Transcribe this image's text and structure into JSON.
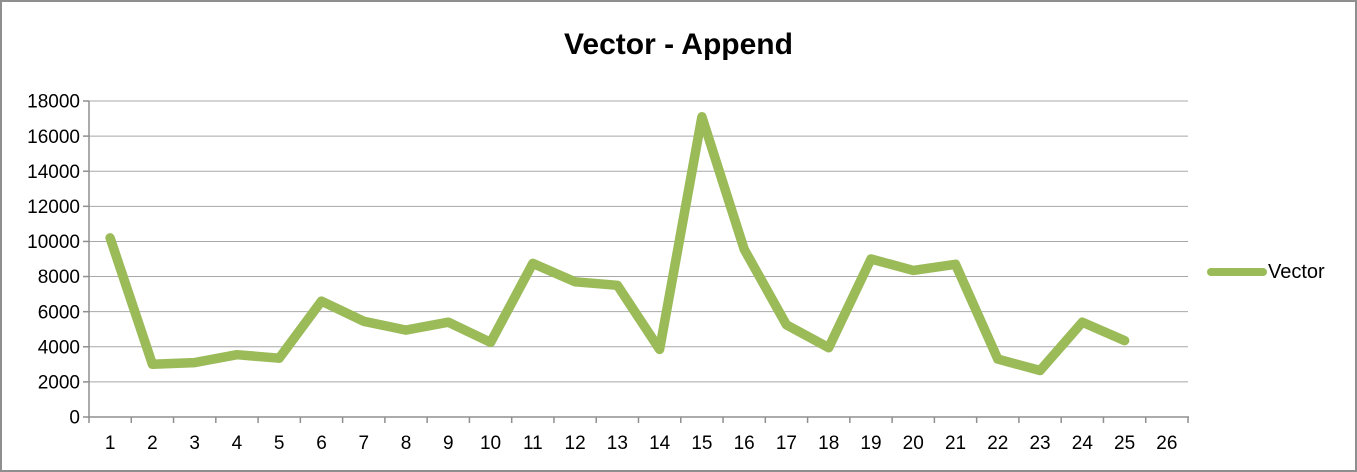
{
  "title": "Vector - Append",
  "legend": {
    "label": "Vector",
    "marker_icon": "line-sample-swatch"
  },
  "colors": {
    "series": "#9BBB59",
    "gridline": "#A8A8A8",
    "axis": "#8F8F8F",
    "text": "#000000",
    "title_text": "#000000",
    "frame_border": "#8F8F8F",
    "background": "#FFFFFF"
  },
  "chart_data": {
    "type": "line",
    "title": "Vector - Append",
    "categories": [
      "1",
      "2",
      "3",
      "4",
      "5",
      "6",
      "7",
      "8",
      "9",
      "10",
      "11",
      "12",
      "13",
      "14",
      "15",
      "16",
      "17",
      "18",
      "19",
      "20",
      "21",
      "22",
      "23",
      "24",
      "25",
      "26"
    ],
    "series": [
      {
        "name": "Vector",
        "values": [
          10200,
          3000,
          3100,
          3550,
          3350,
          6600,
          5450,
          4950,
          5400,
          4250,
          8750,
          7700,
          7500,
          3850,
          17100,
          9550,
          5250,
          3950,
          9000,
          8350,
          8700,
          3300,
          2650,
          5400,
          4350
        ]
      }
    ],
    "xlabel": "",
    "ylabel": "",
    "ylim": [
      0,
      18000
    ],
    "ytick_step": 2000,
    "ytick_labels": [
      "0",
      "2000",
      "4000",
      "6000",
      "8000",
      "10000",
      "12000",
      "14000",
      "16000",
      "18000"
    ],
    "grid": true,
    "legend_position": "right",
    "notes": "26 category slots on x-axis, data present for categories 1-25 only"
  }
}
